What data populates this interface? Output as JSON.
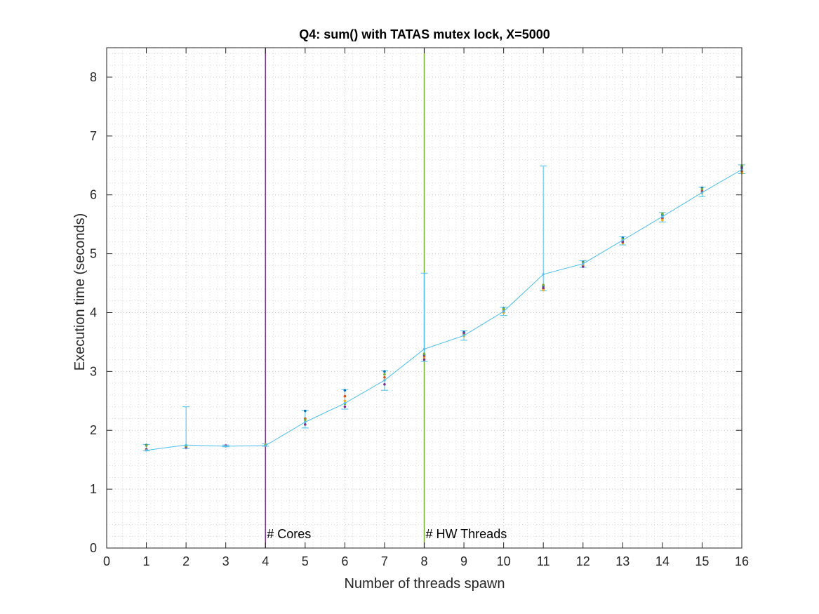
{
  "chart_data": {
    "type": "line",
    "title": "Q4: sum() with TATAS mutex lock, X=5000",
    "xlabel": "Number of threads spawn",
    "ylabel": "Execution time (seconds)",
    "xlim": [
      0,
      16
    ],
    "ylim": [
      0,
      8.5
    ],
    "xticks": [
      0,
      1,
      2,
      3,
      4,
      5,
      6,
      7,
      8,
      9,
      10,
      11,
      12,
      13,
      14,
      15,
      16
    ],
    "yticks": [
      0,
      1,
      2,
      3,
      4,
      5,
      6,
      7,
      8
    ],
    "grid": "major and minor, dotted",
    "colors": {
      "mean_line": "#4dbeee",
      "cores_line": "#7e2f8e",
      "hw_threads_line": "#77ac30",
      "sample_palette": [
        "#0072bd",
        "#d95319",
        "#edb120",
        "#7e2f8e",
        "#77ac30",
        "#4dbeee",
        "#a2142f"
      ]
    },
    "series": [
      {
        "x": [
          1,
          2,
          3,
          4,
          5,
          6,
          7,
          8,
          9,
          10,
          11,
          12,
          13,
          14,
          15,
          16
        ],
        "mean": [
          1.66,
          1.75,
          1.73,
          1.74,
          2.14,
          2.46,
          2.85,
          3.38,
          3.61,
          4.02,
          4.65,
          4.83,
          5.23,
          5.63,
          6.04,
          6.43
        ],
        "min": [
          1.65,
          1.69,
          1.72,
          1.73,
          2.04,
          2.36,
          2.68,
          3.17,
          3.53,
          3.95,
          4.37,
          4.77,
          5.15,
          5.54,
          5.97,
          6.36
        ],
        "max": [
          1.76,
          2.4,
          1.75,
          1.77,
          2.34,
          2.69,
          3.01,
          4.67,
          3.69,
          4.09,
          6.49,
          4.88,
          5.29,
          5.7,
          6.13,
          6.51
        ],
        "samples": [
          [
            1.75,
            1.68,
            1.66,
            1.67,
            1.74
          ],
          [
            1.73,
            1.72,
            1.74,
            1.71,
            1.73
          ],
          [
            1.73,
            1.74,
            1.73,
            1.74,
            1.73
          ],
          [
            1.75,
            1.74,
            1.76,
            1.74,
            1.75
          ],
          [
            2.33,
            2.2,
            2.15,
            2.1,
            2.18
          ],
          [
            2.68,
            2.58,
            2.5,
            2.4,
            2.45
          ],
          [
            3.0,
            2.9,
            2.85,
            2.78,
            2.95
          ],
          [
            3.28,
            3.25,
            3.22,
            3.2,
            3.3
          ],
          [
            3.67,
            3.63,
            3.6,
            3.65,
            3.62
          ],
          [
            4.07,
            4.05,
            4.0,
            4.02,
            4.06
          ],
          [
            4.45,
            4.4,
            4.38,
            4.42,
            4.47
          ],
          [
            4.86,
            4.83,
            4.8,
            4.78,
            4.85
          ],
          [
            5.27,
            5.22,
            5.18,
            5.2,
            5.25
          ],
          [
            5.66,
            5.6,
            5.57,
            5.62,
            5.68
          ],
          [
            6.12,
            6.07,
            6.03,
            6.05,
            6.1
          ],
          [
            6.48,
            6.4,
            6.37,
            6.45,
            6.5
          ]
        ]
      }
    ],
    "vlines": [
      {
        "x": 4,
        "label": "# Cores",
        "color": "#7e2f8e"
      },
      {
        "x": 8,
        "label": "# HW Threads",
        "color": "#77ac30"
      }
    ]
  }
}
